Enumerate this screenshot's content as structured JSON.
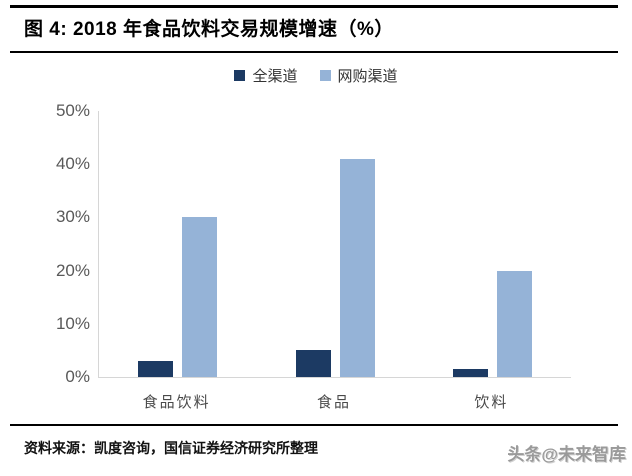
{
  "header": {
    "title": "图 4:  2018 年食品饮料交易规模增速（%）"
  },
  "chart_data": {
    "type": "bar",
    "title": "2018 年食品饮料交易规模增速（%）",
    "categories": [
      "食品饮料",
      "食品",
      "饮料"
    ],
    "series": [
      {
        "name": "全渠道",
        "color": "#1C3A63",
        "values": [
          3,
          5,
          1.5
        ]
      },
      {
        "name": "网购渠道",
        "color": "#95B3D7",
        "values": [
          30,
          41,
          20
        ]
      }
    ],
    "ylim": [
      0,
      50
    ],
    "ytick_labels": [
      "50%",
      "40%",
      "30%",
      "20%",
      "10%",
      "0%"
    ],
    "grid": "off",
    "legend_position": "top-center",
    "axis_color": "#d6d6d6"
  },
  "footer": {
    "source": "资料来源：凯度咨询，国信证券经济研究所整理",
    "watermark": "头条@未来智库"
  }
}
